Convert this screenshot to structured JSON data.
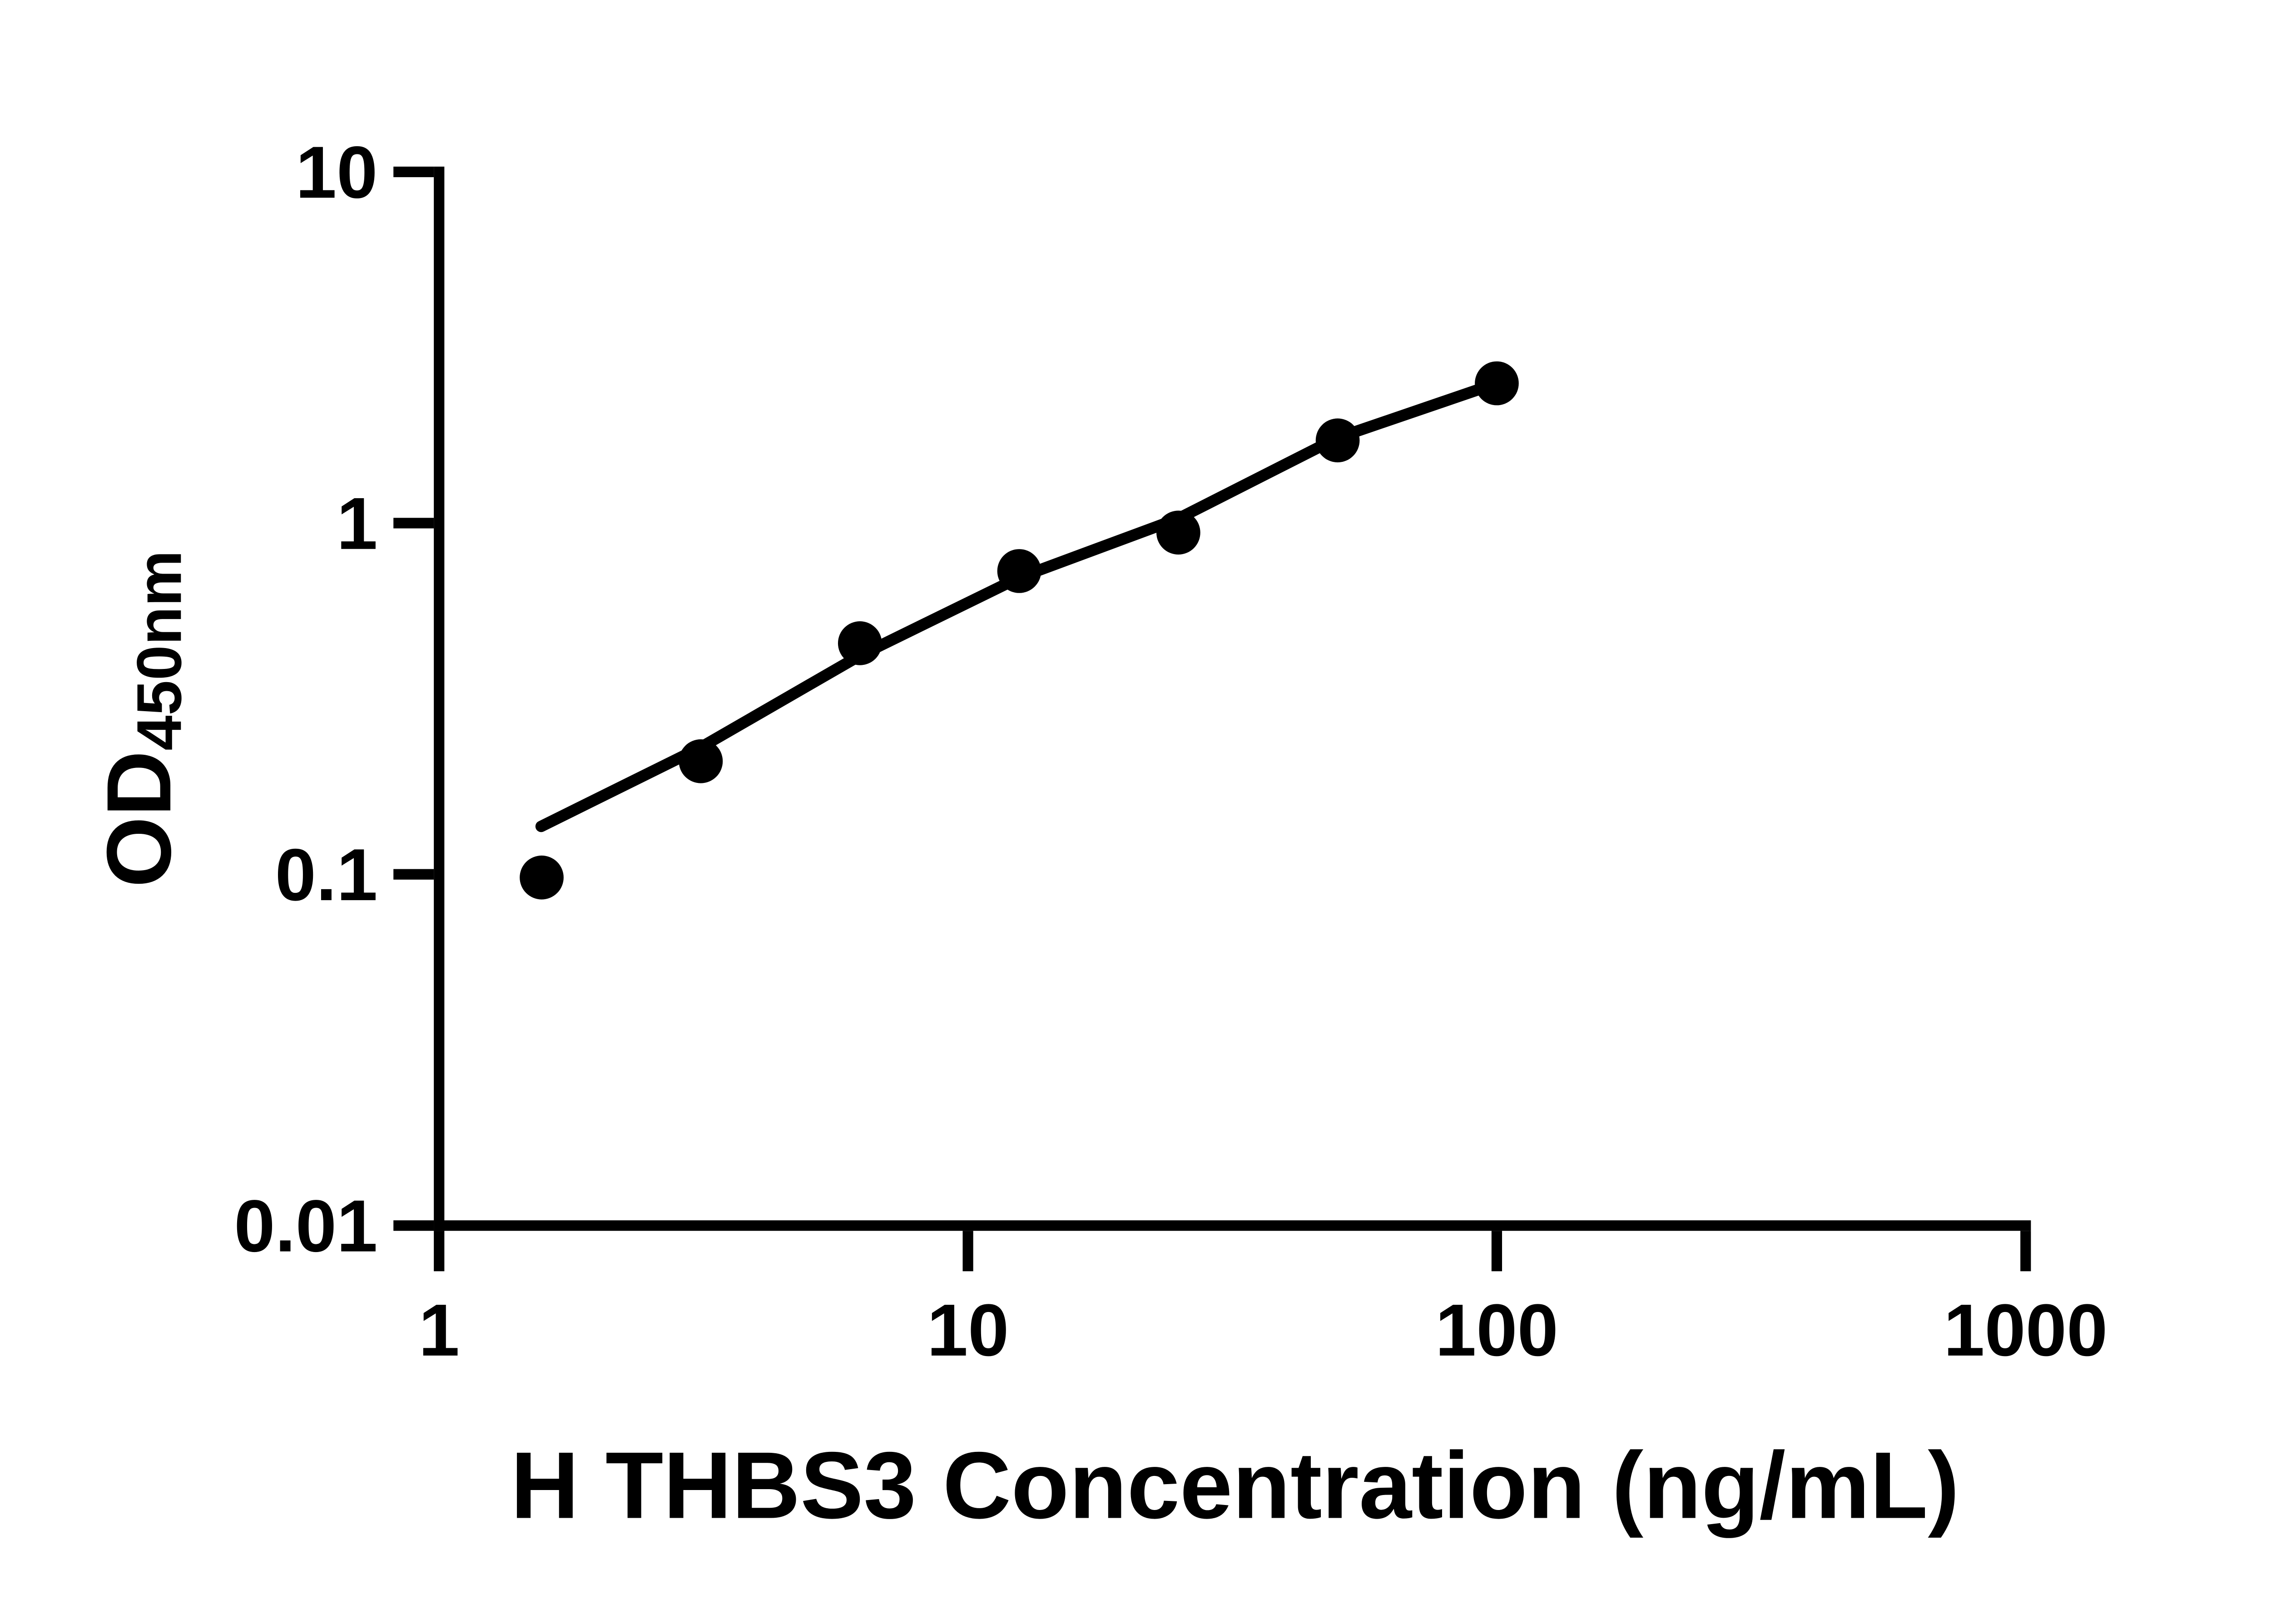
{
  "figure": {
    "background_color": "#ffffff",
    "ink_color": "#000000"
  },
  "chart_data": {
    "type": "scatter",
    "title": "",
    "grid": false,
    "legend": false,
    "x_axis": {
      "label": "H THBS3 Concentration (ng/mL)",
      "scale": "log",
      "range": [
        1,
        1000
      ],
      "ticks": [
        {
          "value": 1,
          "label": "1"
        },
        {
          "value": 10,
          "label": "10"
        },
        {
          "value": 100,
          "label": "100"
        },
        {
          "value": 1000,
          "label": "1000"
        }
      ]
    },
    "y_axis": {
      "label": "OD",
      "label_subscript": "450nm",
      "scale": "log",
      "range": [
        0.01,
        10
      ],
      "ticks": [
        {
          "value": 10,
          "label": "10"
        },
        {
          "value": 1,
          "label": "1"
        },
        {
          "value": 0.1,
          "label": "0.1"
        },
        {
          "value": 0.01,
          "label": "0.01"
        }
      ]
    },
    "series": [
      {
        "name": "standard-points",
        "type": "scatter",
        "marker": "filled-circle",
        "color": "#000000",
        "points": [
          {
            "x": 1.5625,
            "y": 0.098
          },
          {
            "x": 3.125,
            "y": 0.21
          },
          {
            "x": 6.25,
            "y": 0.455
          },
          {
            "x": 12.5,
            "y": 0.73
          },
          {
            "x": 25,
            "y": 0.94
          },
          {
            "x": 50,
            "y": 1.72
          },
          {
            "x": 100,
            "y": 2.5
          }
        ]
      },
      {
        "name": "fit-line",
        "type": "line",
        "color": "#000000",
        "points": [
          {
            "x": 1.56,
            "y": 0.137
          },
          {
            "x": 3.125,
            "y": 0.23
          },
          {
            "x": 6.25,
            "y": 0.42
          },
          {
            "x": 12.5,
            "y": 0.7
          },
          {
            "x": 25,
            "y": 1.03
          },
          {
            "x": 50,
            "y": 1.75
          },
          {
            "x": 100,
            "y": 2.5
          }
        ]
      }
    ]
  }
}
